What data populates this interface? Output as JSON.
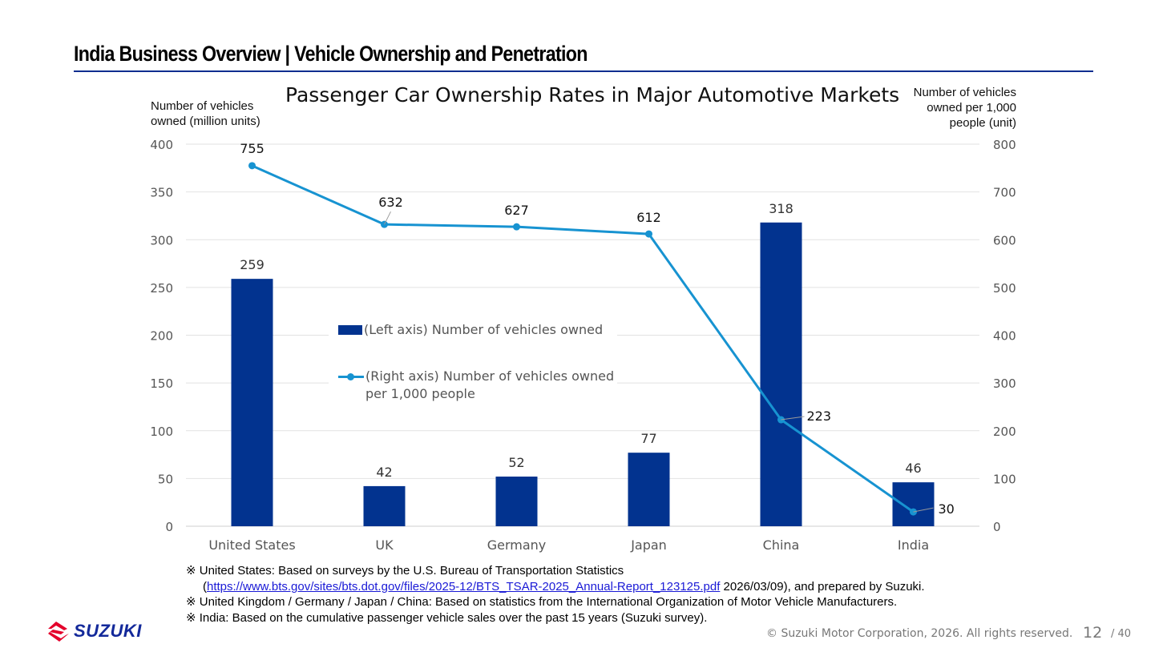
{
  "header": {
    "title": "India Business Overview | Vehicle Ownership and Penetration"
  },
  "chart_data": {
    "type": "bar",
    "title": "Passenger Car Ownership Rates in Major Automotive Markets",
    "categories": [
      "United States",
      "UK",
      "Germany",
      "Japan",
      "China",
      "India"
    ],
    "series": [
      {
        "name": "(Left axis) Number of vehicles owned",
        "chart": "bar",
        "axis": "left",
        "values": [
          259,
          42,
          52,
          77,
          318,
          46
        ],
        "labels": [
          "259",
          "42",
          "52",
          "77",
          "318",
          "46"
        ],
        "color": "#02338f"
      },
      {
        "name": "(Right axis) Number of vehicles owned per 1,000 people",
        "chart": "line",
        "axis": "right",
        "values": [
          755,
          632,
          627,
          612,
          223,
          30
        ],
        "labels": [
          "755",
          "632",
          "627",
          "612",
          "223",
          "30"
        ],
        "color": "#1793d1"
      }
    ],
    "y_left": {
      "label_lines": [
        "Number of vehicles",
        "owned (million units)"
      ],
      "ylim": [
        0,
        400
      ],
      "ticks": [
        "0",
        "50",
        "100",
        "150",
        "200",
        "250",
        "300",
        "350",
        "400"
      ]
    },
    "y_right": {
      "label_lines": [
        "Number of vehicles",
        "owned per 1,000",
        "people (unit)"
      ],
      "ylim": [
        0,
        800
      ],
      "ticks": [
        "0",
        "100",
        "200",
        "300",
        "400",
        "500",
        "600",
        "700",
        "800"
      ]
    },
    "legend": {
      "placement": "center",
      "bar_label": "(Left axis) Number of vehicles owned",
      "line_label_lines": [
        "(Right axis) Number of vehicles owned",
        "per 1,000 people"
      ]
    },
    "grid": true
  },
  "notes": {
    "line1": "※ United States: Based on surveys by the U.S. Bureau of Transportation Statistics",
    "line2_open": "(",
    "line2_link": "https://www.bts.gov/sites/bts.dot.gov/files/2025-12/BTS_TSAR-2025_Annual-Report_123125.pdf",
    "line2_rest": " 2026/03/09), and prepared by Suzuki.",
    "line3": "※ United Kingdom / Germany / Japan / China: Based on statistics from the International Organization of Motor Vehicle Manufacturers.",
    "line4": "※ India: Based on the cumulative passenger vehicle sales over the past 15 years (Suzuki survey)."
  },
  "footer": {
    "brand": "SUZUKI",
    "copyright": "© Suzuki Motor Corporation, 2026. All rights reserved.",
    "page": "12",
    "total": "/ 40"
  },
  "colors": {
    "bar": "#02338f",
    "line": "#1793d1",
    "title_rule": "#0b2d8f",
    "brand_red": "#e4002b",
    "brand_blue": "#13299a"
  }
}
